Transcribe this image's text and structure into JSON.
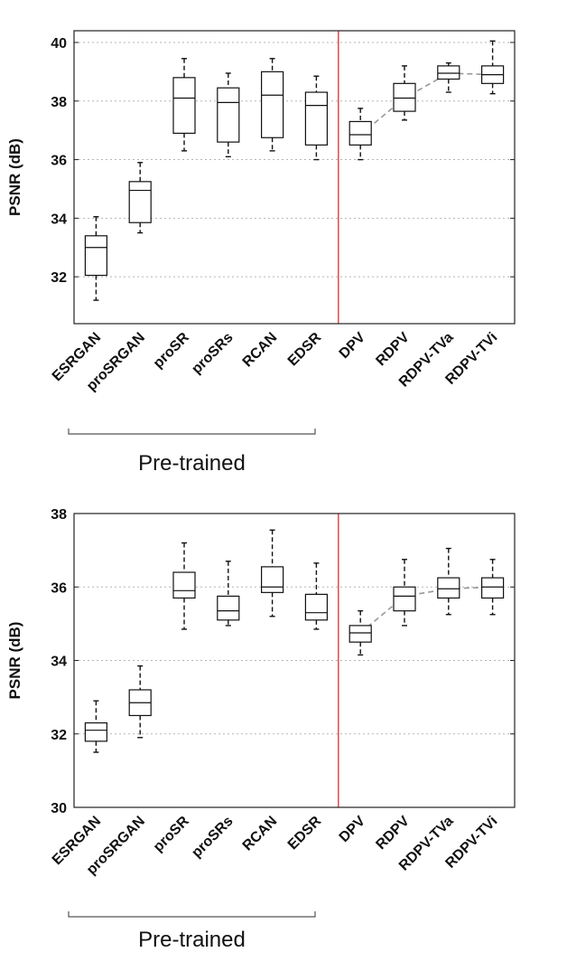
{
  "chart_data": [
    {
      "type": "box",
      "title": "",
      "xlabel": "",
      "ylabel": "PSNR (dB)",
      "ylim": [
        30.4,
        40.4
      ],
      "yticks": [
        32,
        34,
        36,
        38,
        40
      ],
      "grid": "horizontal-dotted",
      "categories": [
        "ESRGAN",
        "proSRGAN",
        "proSR",
        "proSRs",
        "RCAN",
        "EDSR",
        "DPV",
        "RDPV",
        "RDPV-TVa",
        "RDPV-TVi"
      ],
      "boxes": [
        {
          "min": 31.2,
          "q1": 32.05,
          "median": 33.0,
          "q3": 33.4,
          "max": 34.05
        },
        {
          "min": 33.5,
          "q1": 33.85,
          "median": 34.95,
          "q3": 35.25,
          "max": 35.9
        },
        {
          "min": 36.3,
          "q1": 36.9,
          "median": 38.1,
          "q3": 38.8,
          "max": 39.45
        },
        {
          "min": 36.1,
          "q1": 36.6,
          "median": 37.95,
          "q3": 38.45,
          "max": 38.95
        },
        {
          "min": 36.3,
          "q1": 36.75,
          "median": 38.2,
          "q3": 39.0,
          "max": 39.45
        },
        {
          "min": 36.0,
          "q1": 36.5,
          "median": 37.85,
          "q3": 38.3,
          "max": 38.85
        },
        {
          "min": 36.0,
          "q1": 36.5,
          "median": 36.85,
          "q3": 37.3,
          "max": 37.75
        },
        {
          "min": 37.35,
          "q1": 37.65,
          "median": 38.1,
          "q3": 38.6,
          "max": 39.2
        },
        {
          "min": 38.3,
          "q1": 38.75,
          "median": 38.95,
          "q3": 39.2,
          "max": 39.3
        },
        {
          "min": 38.25,
          "q1": 38.6,
          "median": 38.9,
          "q3": 39.2,
          "max": 40.05
        }
      ],
      "trend_line": {
        "from_category": "DPV",
        "values": [
          36.85,
          38.1,
          38.95,
          38.9
        ],
        "style": "dashed",
        "color": "#999999"
      },
      "separator": {
        "after_category": "EDSR",
        "color": "#e03030"
      },
      "group_label": {
        "text": "Pre-trained",
        "spans": [
          "ESRGAN",
          "EDSR"
        ]
      }
    },
    {
      "type": "box",
      "title": "",
      "xlabel": "",
      "ylabel": "PSNR (dB)",
      "ylim": [
        30,
        38
      ],
      "yticks": [
        30,
        32,
        34,
        36,
        38
      ],
      "grid": "horizontal-dotted",
      "categories": [
        "ESRGAN",
        "proSRGAN",
        "proSR",
        "proSRs",
        "RCAN",
        "EDSR",
        "DPV",
        "RDPV",
        "RDPV-TVa",
        "RDPV-TVi"
      ],
      "boxes": [
        {
          "min": 31.5,
          "q1": 31.8,
          "median": 32.1,
          "q3": 32.3,
          "max": 32.9
        },
        {
          "min": 31.9,
          "q1": 32.5,
          "median": 32.85,
          "q3": 33.2,
          "max": 33.85
        },
        {
          "min": 34.85,
          "q1": 35.7,
          "median": 35.9,
          "q3": 36.4,
          "max": 37.2
        },
        {
          "min": 34.95,
          "q1": 35.1,
          "median": 35.35,
          "q3": 35.75,
          "max": 36.7
        },
        {
          "min": 35.2,
          "q1": 35.85,
          "median": 36.0,
          "q3": 36.55,
          "max": 37.55
        },
        {
          "min": 34.85,
          "q1": 35.1,
          "median": 35.3,
          "q3": 35.8,
          "max": 36.65
        },
        {
          "min": 34.15,
          "q1": 34.5,
          "median": 34.75,
          "q3": 34.95,
          "max": 35.35
        },
        {
          "min": 34.95,
          "q1": 35.35,
          "median": 35.75,
          "q3": 36.0,
          "max": 36.75
        },
        {
          "min": 35.25,
          "q1": 35.7,
          "median": 35.95,
          "q3": 36.25,
          "max": 37.05
        },
        {
          "min": 35.25,
          "q1": 35.7,
          "median": 36.0,
          "q3": 36.25,
          "max": 36.75
        }
      ],
      "trend_line": {
        "from_category": "DPV",
        "values": [
          34.75,
          35.75,
          35.95,
          36.0
        ],
        "style": "dashed",
        "color": "#999999"
      },
      "separator": {
        "after_category": "EDSR",
        "color": "#e03030"
      },
      "group_label": {
        "text": "Pre-trained",
        "spans": [
          "ESRGAN",
          "EDSR"
        ]
      }
    }
  ]
}
